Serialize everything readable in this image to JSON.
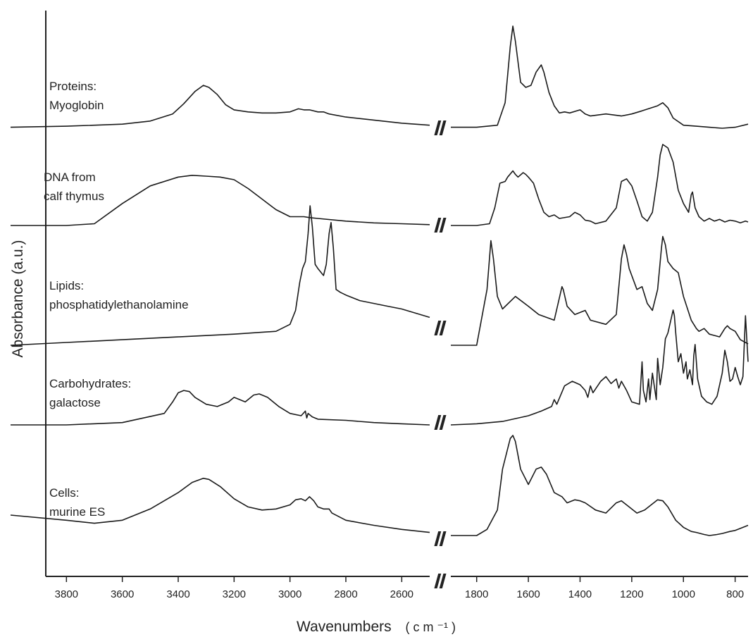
{
  "chart_data": {
    "type": "line",
    "title": "",
    "xlabel": "Wavenumbers",
    "xlabel_unit": "( c m ⁻¹ )",
    "ylabel": "Absorbance (a.u.)",
    "x_axis_reversed": true,
    "axis_break": "//",
    "x_segments": [
      {
        "range": [
          4000,
          2500
        ],
        "ticks": [
          3800,
          3600,
          3400,
          3200,
          3000,
          2800,
          2600
        ]
      },
      {
        "range": [
          1900,
          750
        ],
        "ticks": [
          1800,
          1600,
          1400,
          1200,
          1000,
          800
        ]
      }
    ],
    "series": [
      {
        "label_lines": [
          "Proteins:",
          "Myoglobin"
        ],
        "x": [
          4000,
          3800,
          3600,
          3500,
          3420,
          3380,
          3340,
          3310,
          3290,
          3260,
          3230,
          3200,
          3150,
          3100,
          3050,
          3000,
          2970,
          2950,
          2930,
          2900,
          2880,
          2860,
          2800,
          2700,
          2600,
          2500,
          1900,
          1800,
          1720,
          1690,
          1670,
          1660,
          1650,
          1630,
          1610,
          1590,
          1570,
          1550,
          1540,
          1520,
          1500,
          1480,
          1460,
          1440,
          1400,
          1380,
          1360,
          1300,
          1240,
          1200,
          1160,
          1100,
          1080,
          1060,
          1040,
          1000,
          950,
          900,
          850,
          800,
          750
        ],
        "y": [
          0.01,
          0.02,
          0.04,
          0.07,
          0.14,
          0.24,
          0.36,
          0.42,
          0.4,
          0.33,
          0.23,
          0.18,
          0.16,
          0.15,
          0.15,
          0.16,
          0.19,
          0.18,
          0.18,
          0.16,
          0.16,
          0.14,
          0.11,
          0.08,
          0.05,
          0.03,
          0.01,
          0.01,
          0.03,
          0.25,
          0.8,
          1.0,
          0.85,
          0.45,
          0.4,
          0.42,
          0.55,
          0.62,
          0.55,
          0.35,
          0.22,
          0.15,
          0.16,
          0.15,
          0.18,
          0.14,
          0.12,
          0.14,
          0.12,
          0.14,
          0.17,
          0.22,
          0.25,
          0.2,
          0.1,
          0.03,
          0.02,
          0.01,
          0.0,
          0.01,
          0.04
        ]
      },
      {
        "label_lines": [
          "DNA from",
          "calf thymus"
        ],
        "x": [
          4000,
          3800,
          3700,
          3600,
          3500,
          3400,
          3350,
          3300,
          3250,
          3200,
          3150,
          3100,
          3050,
          3000,
          2970,
          2950,
          2930,
          2900,
          2800,
          2700,
          2600,
          2500,
          1900,
          1800,
          1750,
          1730,
          1710,
          1690,
          1680,
          1660,
          1650,
          1640,
          1620,
          1610,
          1600,
          1580,
          1560,
          1540,
          1520,
          1500,
          1480,
          1440,
          1420,
          1400,
          1380,
          1360,
          1340,
          1300,
          1260,
          1240,
          1220,
          1200,
          1180,
          1160,
          1140,
          1120,
          1100,
          1090,
          1080,
          1070,
          1060,
          1040,
          1020,
          1000,
          980,
          970,
          965,
          955,
          940,
          920,
          900,
          880,
          860,
          840,
          820,
          800,
          780,
          760,
          750
        ],
        "y": [
          0.0,
          0.0,
          0.02,
          0.25,
          0.45,
          0.55,
          0.57,
          0.56,
          0.55,
          0.52,
          0.42,
          0.3,
          0.18,
          0.1,
          0.1,
          0.1,
          0.09,
          0.08,
          0.05,
          0.03,
          0.02,
          0.01,
          0.0,
          0.0,
          0.02,
          0.2,
          0.48,
          0.5,
          0.55,
          0.62,
          0.58,
          0.55,
          0.6,
          0.58,
          0.55,
          0.48,
          0.3,
          0.15,
          0.1,
          0.12,
          0.08,
          0.1,
          0.15,
          0.12,
          0.06,
          0.05,
          0.02,
          0.05,
          0.2,
          0.5,
          0.53,
          0.45,
          0.28,
          0.1,
          0.05,
          0.15,
          0.55,
          0.8,
          0.92,
          0.9,
          0.88,
          0.72,
          0.4,
          0.25,
          0.15,
          0.35,
          0.38,
          0.2,
          0.1,
          0.05,
          0.08,
          0.05,
          0.07,
          0.04,
          0.06,
          0.05,
          0.03,
          0.05,
          0.04
        ]
      },
      {
        "label_lines": [
          "Lipids:",
          "phosphatidylethanolamine"
        ],
        "x": [
          4000,
          3800,
          3600,
          3400,
          3200,
          3050,
          3000,
          2980,
          2965,
          2955,
          2945,
          2935,
          2928,
          2920,
          2910,
          2900,
          2880,
          2870,
          2860,
          2853,
          2845,
          2835,
          2820,
          2800,
          2750,
          2700,
          2650,
          2600,
          2500,
          1900,
          1800,
          1760,
          1745,
          1735,
          1720,
          1700,
          1650,
          1600,
          1560,
          1500,
          1470,
          1465,
          1450,
          1420,
          1380,
          1360,
          1300,
          1260,
          1240,
          1230,
          1220,
          1210,
          1180,
          1160,
          1140,
          1120,
          1100,
          1085,
          1080,
          1070,
          1060,
          1040,
          1020,
          1000,
          970,
          950,
          940,
          920,
          900,
          880,
          860,
          840,
          830,
          820,
          800,
          780,
          760,
          750
        ],
        "y": [
          0.0,
          0.02,
          0.04,
          0.06,
          0.08,
          0.1,
          0.15,
          0.25,
          0.45,
          0.55,
          0.6,
          0.8,
          1.0,
          0.85,
          0.58,
          0.55,
          0.5,
          0.58,
          0.8,
          0.88,
          0.7,
          0.4,
          0.38,
          0.36,
          0.32,
          0.3,
          0.28,
          0.26,
          0.2,
          0.0,
          0.0,
          0.4,
          0.75,
          0.62,
          0.35,
          0.26,
          0.35,
          0.28,
          0.22,
          0.18,
          0.42,
          0.4,
          0.28,
          0.22,
          0.25,
          0.18,
          0.15,
          0.22,
          0.62,
          0.72,
          0.65,
          0.55,
          0.4,
          0.42,
          0.3,
          0.25,
          0.4,
          0.7,
          0.78,
          0.72,
          0.6,
          0.55,
          0.52,
          0.35,
          0.18,
          0.12,
          0.1,
          0.12,
          0.08,
          0.07,
          0.06,
          0.12,
          0.14,
          0.12,
          0.1,
          0.04,
          0.02,
          0.01
        ]
      },
      {
        "label_lines": [
          "Carbohydrates:",
          "galactose"
        ],
        "x": [
          4000,
          3800,
          3600,
          3450,
          3420,
          3400,
          3380,
          3360,
          3340,
          3300,
          3260,
          3220,
          3200,
          3180,
          3160,
          3130,
          3110,
          3080,
          3040,
          3000,
          2960,
          2945,
          2940,
          2935,
          2920,
          2900,
          2800,
          2700,
          2600,
          2500,
          1900,
          1800,
          1700,
          1600,
          1550,
          1510,
          1500,
          1490,
          1460,
          1430,
          1400,
          1380,
          1370,
          1360,
          1350,
          1320,
          1300,
          1280,
          1260,
          1250,
          1240,
          1230,
          1220,
          1200,
          1170,
          1160,
          1155,
          1145,
          1135,
          1130,
          1120,
          1105,
          1100,
          1090,
          1080,
          1070,
          1060,
          1050,
          1040,
          1035,
          1030,
          1020,
          1010,
          1000,
          990,
          985,
          975,
          965,
          960,
          955,
          945,
          930,
          910,
          890,
          870,
          850,
          840,
          830,
          820,
          810,
          800,
          790,
          780,
          770,
          760,
          750
        ],
        "y": [
          0.0,
          0.0,
          0.02,
          0.1,
          0.2,
          0.28,
          0.3,
          0.29,
          0.24,
          0.18,
          0.16,
          0.2,
          0.24,
          0.22,
          0.2,
          0.26,
          0.27,
          0.24,
          0.16,
          0.1,
          0.08,
          0.12,
          0.06,
          0.1,
          0.07,
          0.05,
          0.04,
          0.02,
          0.01,
          0.0,
          0.0,
          0.01,
          0.03,
          0.08,
          0.12,
          0.16,
          0.22,
          0.18,
          0.34,
          0.38,
          0.35,
          0.3,
          0.24,
          0.34,
          0.28,
          0.38,
          0.42,
          0.36,
          0.4,
          0.32,
          0.38,
          0.34,
          0.3,
          0.2,
          0.18,
          0.55,
          0.3,
          0.2,
          0.4,
          0.22,
          0.45,
          0.22,
          0.58,
          0.35,
          0.5,
          0.75,
          0.8,
          0.9,
          1.0,
          0.95,
          0.8,
          0.55,
          0.62,
          0.45,
          0.55,
          0.4,
          0.48,
          0.35,
          0.6,
          0.7,
          0.4,
          0.25,
          0.2,
          0.18,
          0.25,
          0.45,
          0.65,
          0.55,
          0.38,
          0.4,
          0.5,
          0.42,
          0.35,
          0.42,
          0.95,
          0.55
        ]
      },
      {
        "label_lines": [
          "Cells:",
          " murine ES"
        ],
        "x": [
          4000,
          3800,
          3700,
          3600,
          3500,
          3400,
          3350,
          3310,
          3290,
          3250,
          3200,
          3150,
          3100,
          3050,
          3000,
          2980,
          2960,
          2945,
          2930,
          2915,
          2900,
          2880,
          2860,
          2850,
          2800,
          2700,
          2600,
          2500,
          1900,
          1800,
          1760,
          1720,
          1700,
          1680,
          1670,
          1660,
          1650,
          1630,
          1600,
          1570,
          1550,
          1530,
          1500,
          1470,
          1450,
          1420,
          1400,
          1380,
          1340,
          1300,
          1260,
          1240,
          1220,
          1180,
          1150,
          1100,
          1080,
          1060,
          1030,
          1000,
          970,
          950,
          920,
          900,
          870,
          850,
          820,
          800,
          780,
          760,
          750
        ],
        "y": [
          0.2,
          0.15,
          0.12,
          0.15,
          0.26,
          0.42,
          0.52,
          0.56,
          0.55,
          0.48,
          0.36,
          0.28,
          0.25,
          0.26,
          0.3,
          0.35,
          0.36,
          0.34,
          0.38,
          0.34,
          0.28,
          0.26,
          0.26,
          0.22,
          0.15,
          0.1,
          0.06,
          0.03,
          0.0,
          0.0,
          0.06,
          0.25,
          0.65,
          0.85,
          0.95,
          0.98,
          0.92,
          0.65,
          0.5,
          0.65,
          0.67,
          0.6,
          0.42,
          0.38,
          0.32,
          0.35,
          0.34,
          0.32,
          0.25,
          0.22,
          0.32,
          0.34,
          0.3,
          0.22,
          0.25,
          0.35,
          0.34,
          0.28,
          0.15,
          0.08,
          0.04,
          0.03,
          0.01,
          0.0,
          0.01,
          0.02,
          0.04,
          0.05,
          0.07,
          0.09,
          0.1
        ]
      }
    ],
    "grid": false,
    "legend": "none"
  }
}
